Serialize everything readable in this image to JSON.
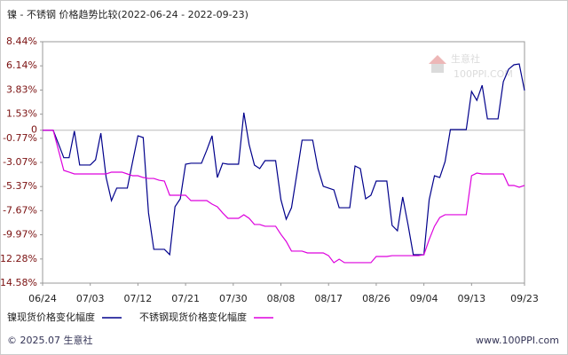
{
  "chart_data": {
    "type": "line",
    "title": "镍 - 不锈钢 价格趋势比较(2022-06-24 - 2022-09-23)",
    "categories": [
      "06/24",
      null,
      null,
      null,
      null,
      null,
      null,
      null,
      null,
      "07/03",
      null,
      null,
      null,
      null,
      null,
      null,
      null,
      null,
      "07/12",
      null,
      null,
      null,
      null,
      null,
      null,
      null,
      null,
      "07/21",
      null,
      null,
      null,
      null,
      null,
      null,
      null,
      null,
      "07/30",
      null,
      null,
      null,
      null,
      null,
      null,
      null,
      null,
      "08/08",
      null,
      null,
      null,
      null,
      null,
      null,
      null,
      null,
      "08/17",
      null,
      null,
      null,
      null,
      null,
      null,
      null,
      null,
      "08/26",
      null,
      null,
      null,
      null,
      null,
      null,
      null,
      null,
      "09/04",
      null,
      null,
      null,
      null,
      null,
      null,
      null,
      null,
      "09/13",
      null,
      null,
      null,
      null,
      null,
      null,
      null,
      null,
      null,
      "09/23"
    ],
    "series": [
      {
        "name": "镍现货价格变化幅度",
        "color": "#00008b",
        "values": [
          0,
          0,
          0,
          -1.3,
          -2.62,
          -2.62,
          -0.08,
          -3.32,
          -3.32,
          -3.32,
          -2.82,
          -0.28,
          -4.51,
          -6.71,
          -5.52,
          -5.52,
          -5.52,
          -3.0,
          -0.53,
          -0.7,
          -7.89,
          -11.36,
          -11.36,
          -11.36,
          -11.87,
          -7.3,
          -6.54,
          -3.24,
          -3.15,
          -3.15,
          -3.15,
          -1.9,
          -0.53,
          -4.51,
          -3.15,
          -3.24,
          -3.24,
          -3.24,
          1.67,
          -1.38,
          -3.32,
          -3.66,
          -2.9,
          -2.9,
          -2.9,
          -6.62,
          -8.49,
          -7.39,
          -4.2,
          -0.95,
          -0.95,
          -0.95,
          -3.66,
          -5.35,
          -5.52,
          -5.69,
          -7.39,
          -7.39,
          -7.39,
          -3.41,
          -3.66,
          -6.54,
          -6.2,
          -4.85,
          -4.85,
          -4.85,
          -9.08,
          -9.59,
          -6.37,
          -9.0,
          -11.87,
          -11.87,
          -11.87,
          -6.62,
          -4.34,
          -4.51,
          -2.99,
          0.06,
          0.06,
          0.06,
          0.06,
          3.7,
          2.85,
          4.29,
          1.08,
          1.08,
          1.08,
          4.63,
          5.82,
          6.24,
          6.32,
          3.78
        ]
      },
      {
        "name": "不锈钢现货价格变化幅度",
        "color": "#dd00dd",
        "values": [
          0,
          0,
          0,
          -1.9,
          -3.83,
          -4.0,
          -4.17,
          -4.17,
          -4.17,
          -4.17,
          -4.17,
          -4.17,
          -4.17,
          -4.0,
          -4.0,
          -4.0,
          -4.17,
          -4.34,
          -4.34,
          -4.51,
          -4.6,
          -4.6,
          -4.77,
          -4.85,
          -6.2,
          -6.2,
          -6.2,
          -6.2,
          -6.71,
          -6.71,
          -6.71,
          -6.71,
          -7.05,
          -7.3,
          -7.89,
          -8.4,
          -8.4,
          -8.4,
          -8.06,
          -8.4,
          -8.99,
          -8.99,
          -9.16,
          -9.16,
          -9.16,
          -9.93,
          -10.6,
          -11.53,
          -11.53,
          -11.53,
          -11.7,
          -11.7,
          -11.7,
          -11.7,
          -11.96,
          -12.63,
          -12.3,
          -12.63,
          -12.63,
          -12.63,
          -12.63,
          -12.63,
          -12.63,
          -12.04,
          -12.04,
          -12.04,
          -11.96,
          -11.96,
          -11.96,
          -11.96,
          -11.96,
          -11.96,
          -11.87,
          -10.43,
          -9.16,
          -8.32,
          -8.06,
          -8.06,
          -8.06,
          -8.06,
          -8.06,
          -4.34,
          -4.09,
          -4.17,
          -4.17,
          -4.17,
          -4.17,
          -4.17,
          -5.27,
          -5.27,
          -5.44,
          -5.27
        ]
      }
    ],
    "ylim": [
      -14.58,
      8.44
    ],
    "yticks": [
      {
        "value": 8.44,
        "label": "8.44%"
      },
      {
        "value": 6.14,
        "label": "6.14%"
      },
      {
        "value": 3.83,
        "label": "3.83%"
      },
      {
        "value": 1.53,
        "label": "1.53%"
      },
      0,
      {
        "value": -0.77,
        "label": "-0.77%"
      },
      {
        "value": -3.07,
        "label": "-3.07%"
      },
      {
        "value": -5.37,
        "label": "-5.37%"
      },
      {
        "value": -7.67,
        "label": "-7.67%"
      },
      {
        "value": -9.97,
        "label": "-9.97%"
      },
      {
        "value": -12.28,
        "label": "-12.28%"
      },
      {
        "value": -14.58,
        "label": "-14.58%"
      }
    ],
    "grid": false,
    "watermark": "生意社",
    "watermark_sub": "100PPI.COM",
    "footer_left": "© 2025.07 生意社",
    "footer_right": "www.100PPI.com"
  }
}
